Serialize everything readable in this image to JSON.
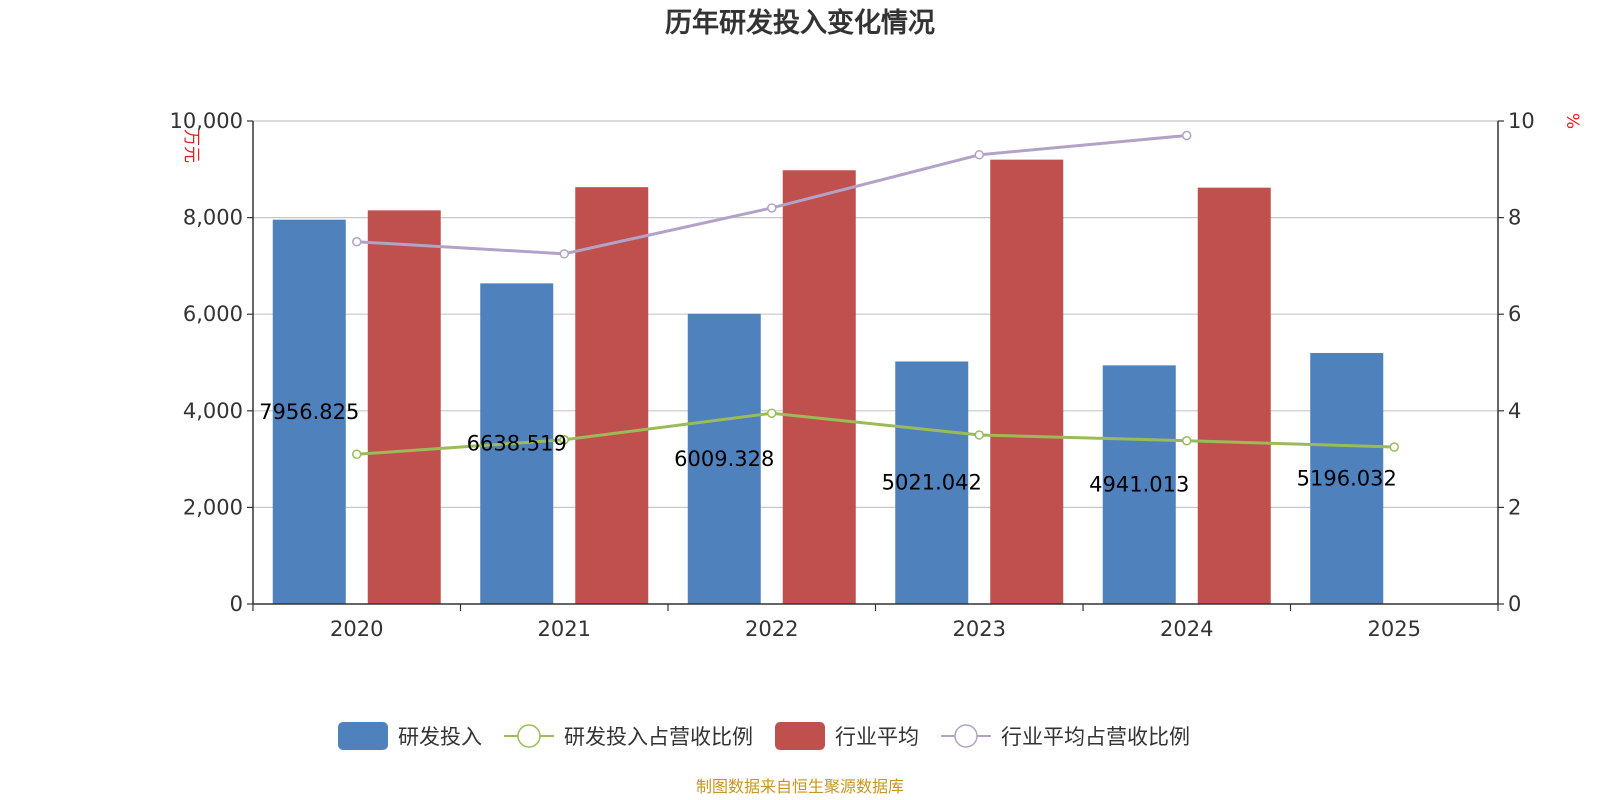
{
  "chart_data": {
    "type": "bar",
    "title": "历年研发投入变化情况",
    "categories": [
      "2020",
      "2021",
      "2022",
      "2023",
      "2024",
      "2025"
    ],
    "y_left": {
      "unit": "万元",
      "ylim": [
        0,
        10000
      ],
      "ticks": [
        "0",
        "2,000",
        "4,000",
        "6,000",
        "8,000",
        "10,000"
      ],
      "tick_values": [
        0,
        2000,
        4000,
        6000,
        8000,
        10000
      ]
    },
    "y_right": {
      "unit": "%",
      "ylim": [
        0,
        10
      ],
      "ticks": [
        "0",
        "2",
        "4",
        "6",
        "8",
        "10"
      ],
      "tick_values": [
        0,
        2,
        4,
        6,
        8,
        10
      ]
    },
    "series": [
      {
        "name": "研发投入",
        "kind": "bar",
        "axis": "left",
        "color": "#4f81bd",
        "values": [
          7956.825,
          6638.519,
          6009.328,
          5021.042,
          4941.013,
          5196.032
        ],
        "labels": [
          "7956.825",
          "6638.519",
          "6009.328",
          "5021.042",
          "4941.013",
          "5196.032"
        ]
      },
      {
        "name": "研发投入占营收比例",
        "kind": "line",
        "axis": "right",
        "color": "#9bbb59",
        "values": [
          3.1,
          3.4,
          3.95,
          3.5,
          3.38,
          3.25
        ]
      },
      {
        "name": "行业平均",
        "kind": "bar",
        "axis": "left",
        "color": "#c0504d",
        "values": [
          8150,
          8630,
          8980,
          9200,
          8620,
          null
        ]
      },
      {
        "name": "行业平均占营收比例",
        "kind": "line",
        "axis": "right",
        "color": "#b3a2c7",
        "values": [
          7.5,
          7.25,
          8.2,
          9.3,
          9.7,
          null
        ]
      }
    ],
    "grid": true,
    "legend_position": "bottom"
  },
  "source": "制图数据来自恒生聚源数据库"
}
